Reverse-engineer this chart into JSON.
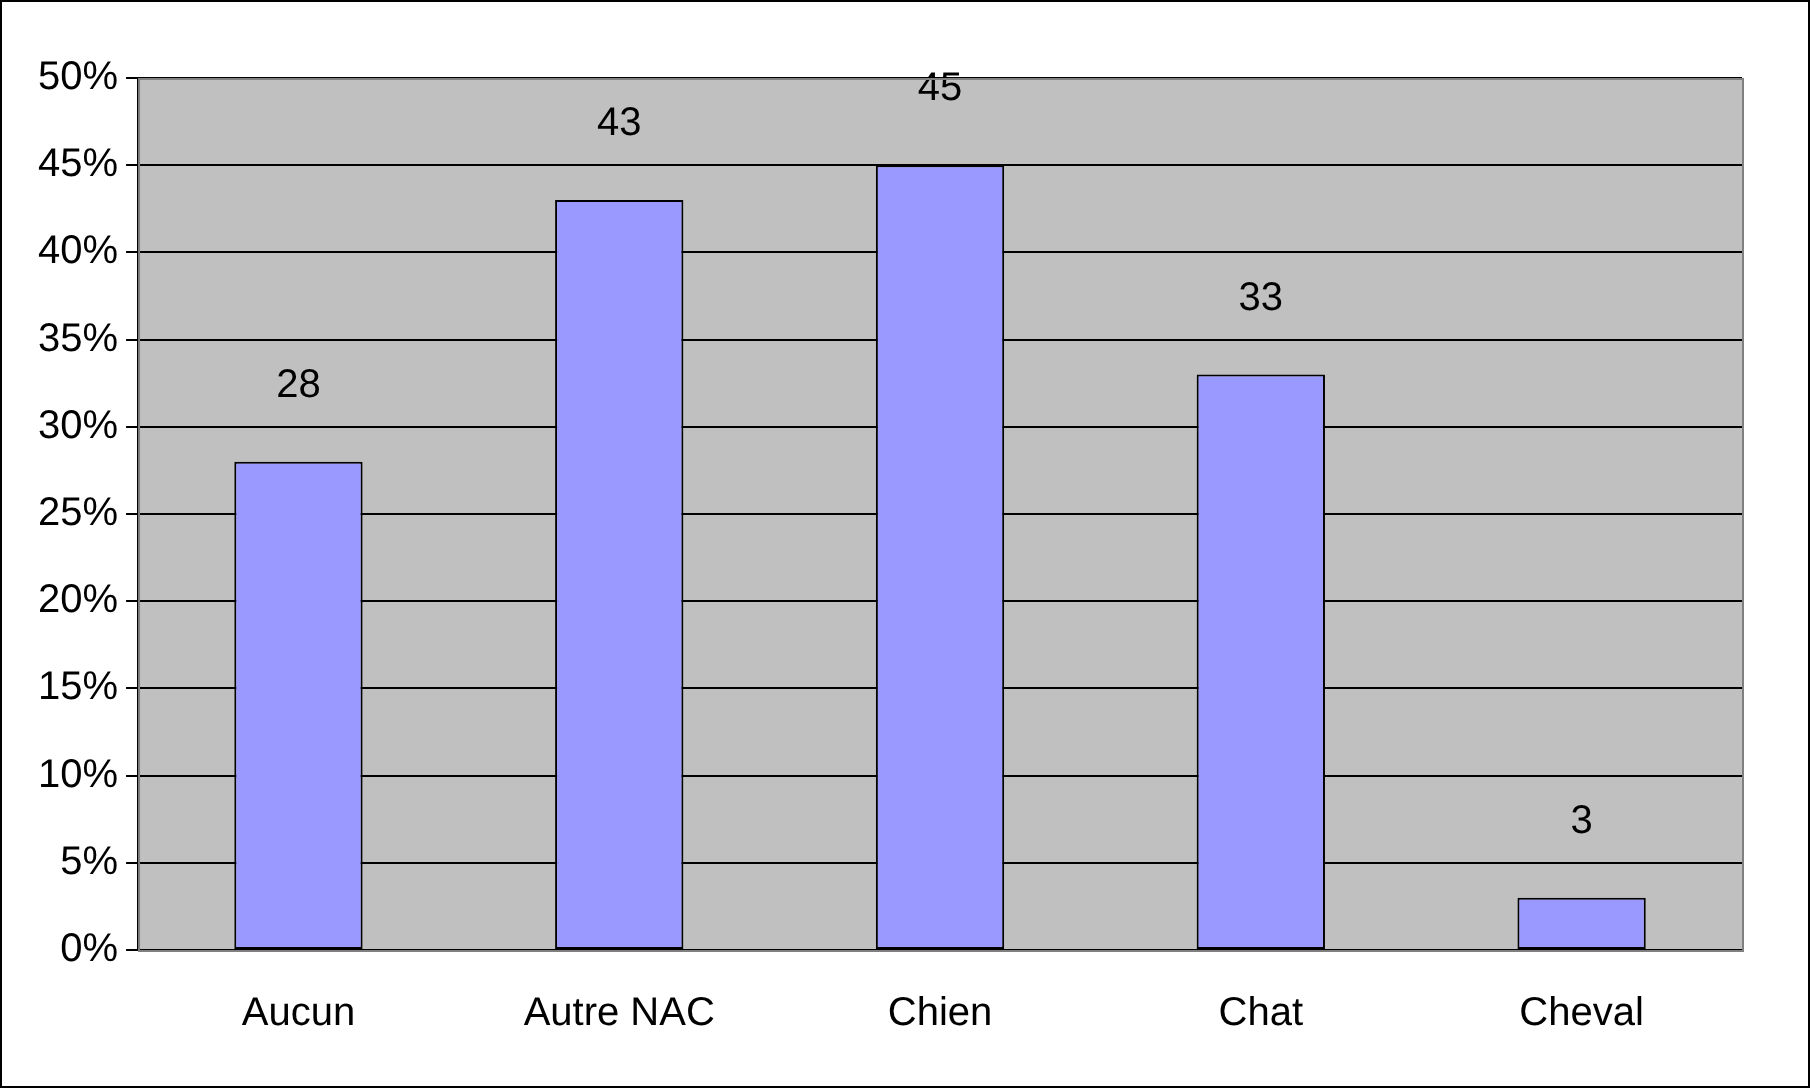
{
  "chart_data": {
    "type": "bar",
    "categories": [
      "Aucun",
      "Autre NAC",
      "Chien",
      "Chat",
      "Cheval"
    ],
    "values": [
      28,
      43,
      45,
      33,
      3
    ],
    "color": "#9999ff",
    "ylim": [
      0,
      50
    ],
    "yticks": [
      {
        "value": 0,
        "label": "0%"
      },
      {
        "value": 5,
        "label": "5%"
      },
      {
        "value": 10,
        "label": "10%"
      },
      {
        "value": 15,
        "label": "15%"
      },
      {
        "value": 20,
        "label": "20%"
      },
      {
        "value": 25,
        "label": "25%"
      },
      {
        "value": 30,
        "label": "30%"
      },
      {
        "value": 35,
        "label": "35%"
      },
      {
        "value": 40,
        "label": "40%"
      },
      {
        "value": 45,
        "label": "45%"
      },
      {
        "value": 50,
        "label": "50%"
      }
    ],
    "grid": "y",
    "data_labels": true,
    "legend": false
  }
}
